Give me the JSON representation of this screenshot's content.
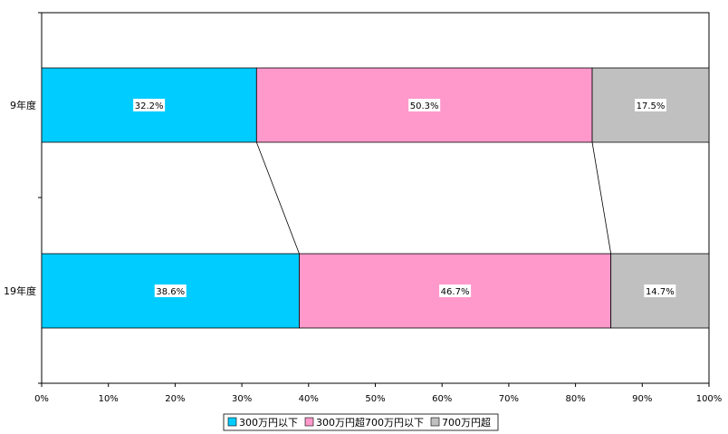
{
  "chart_data": {
    "type": "bar",
    "orientation": "horizontal",
    "stacked": "percent",
    "categories": [
      "9年度",
      "19年度"
    ],
    "series": [
      {
        "name": "300万円以下",
        "values": [
          32.2,
          38.6
        ],
        "color": "#00CCFF"
      },
      {
        "name": "300万円超700万円以下",
        "values": [
          50.3,
          46.7
        ],
        "color": "#FF99CC"
      },
      {
        "name": "700万円超",
        "values": [
          17.5,
          14.7
        ],
        "color": "#C0C0C0"
      }
    ],
    "data_labels": [
      [
        "32.2%",
        "50.3%",
        "17.5%"
      ],
      [
        "38.6%",
        "46.7%",
        "14.7%"
      ]
    ],
    "xticks": [
      "0%",
      "10%",
      "20%",
      "30%",
      "40%",
      "50%",
      "60%",
      "70%",
      "80%",
      "90%",
      "100%"
    ],
    "xlim": [
      0,
      100
    ],
    "series_lines": true,
    "grid": false,
    "legend_position": "bottom"
  }
}
